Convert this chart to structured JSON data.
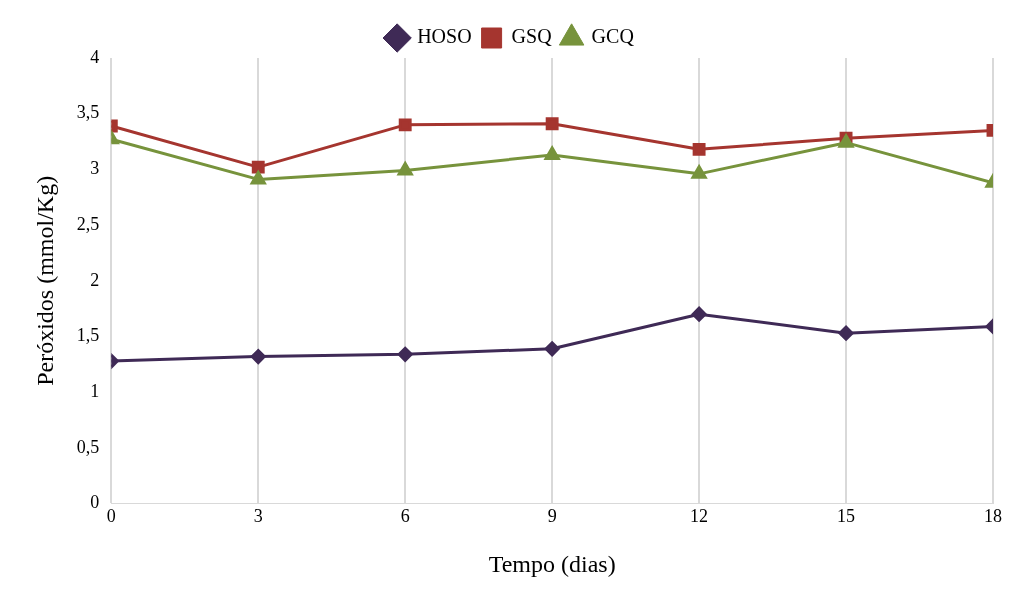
{
  "chart_data": {
    "type": "line",
    "xlabel": "Tempo (dias)",
    "ylabel": "Peróxidos (mmol/Kg)",
    "x": [
      0,
      3,
      6,
      9,
      12,
      15,
      18
    ],
    "series": [
      {
        "name": "HOSO",
        "color": "#3f2a56",
        "marker": "diamond",
        "values": [
          1.28,
          1.32,
          1.34,
          1.39,
          1.7,
          1.53,
          1.59
        ]
      },
      {
        "name": "GSQ",
        "color": "#a5352f",
        "marker": "square",
        "values": [
          3.39,
          3.02,
          3.4,
          3.41,
          3.18,
          3.28,
          3.35
        ]
      },
      {
        "name": "GCQ",
        "color": "#77933c",
        "marker": "triangle",
        "values": [
          3.27,
          2.91,
          2.99,
          3.13,
          2.96,
          3.24,
          2.88
        ]
      }
    ],
    "xlim": [
      0,
      18
    ],
    "xticks": [
      0,
      3,
      6,
      9,
      12,
      15,
      18
    ],
    "ylim": [
      0,
      4
    ],
    "yticks": [
      0,
      {
        "value": 0.5,
        "label": "0,5"
      },
      1,
      {
        "value": 1.5,
        "label": "1,5"
      },
      2,
      {
        "value": 2.5,
        "label": "2,5"
      },
      3,
      {
        "value": 3.5,
        "label": "3,5"
      },
      4
    ],
    "grid": "x",
    "legend": "top",
    "line_style": "solid"
  }
}
